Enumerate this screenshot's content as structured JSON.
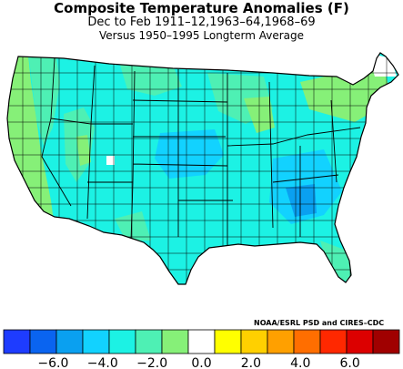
{
  "header": {
    "title": "Composite Temperature Anomalies (F)",
    "period": "Dec to Feb  1911–12,1963–64,1968–69",
    "baseline": "Versus 1950–1995 Longterm Average"
  },
  "credit": "NOAA/ESRL PSD and CIRES–CDC",
  "legend": {
    "colors": [
      "#1e3cff",
      "#0a64f0",
      "#0aa0f0",
      "#12d2ff",
      "#1cf2e4",
      "#4ef0b4",
      "#86f078",
      "#ffffff",
      "#ffff00",
      "#ffd000",
      "#ffa000",
      "#ff6e00",
      "#ff2800",
      "#dc0000",
      "#a00000"
    ],
    "tick_labels": [
      "−6.0",
      "−4.0",
      "−2.0",
      "0.0",
      "2.0",
      "4.0",
      "6.0"
    ],
    "tick_values": [
      -6,
      -4,
      -2,
      0,
      2,
      4,
      6
    ],
    "range": [
      -8,
      8
    ]
  },
  "map": {
    "region": "contiguous United States climate divisions",
    "dominant_color": "#1cf2e4"
  }
}
